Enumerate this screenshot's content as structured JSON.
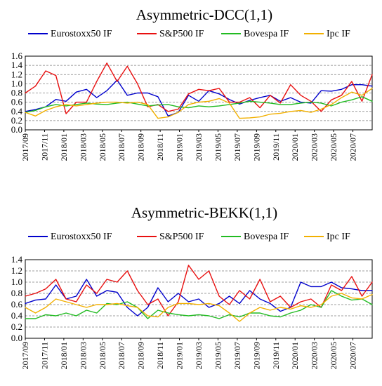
{
  "chart_data": [
    {
      "type": "line",
      "title": "Asymmetric-DCC(1,1)",
      "ylim": [
        0,
        1.6
      ],
      "yticks": [
        0,
        0.2,
        0.4,
        0.6,
        0.8,
        1.0,
        1.2,
        1.4,
        1.6
      ],
      "ytick_labels": [
        "0.0",
        "0.2",
        "0.4",
        "0.6",
        "0.8",
        "1.0",
        "1.2",
        "1.4",
        "1.6"
      ],
      "xtick_labels": [
        "2017/09",
        "2017/11",
        "2018/01",
        "2018/03",
        "2018/05",
        "2018/07",
        "2018/09",
        "2018/11",
        "2019/01",
        "2019/03",
        "2019/05",
        "2019/07",
        "2019/09",
        "2019/11",
        "2020/01",
        "2020/03",
        "2020/05",
        "2020/07"
      ],
      "grid": "horizontal-dashed",
      "legend": "top",
      "series": [
        {
          "name": "Eurostoxx50 IF",
          "color": "#0000CC",
          "values": [
            0.4,
            0.44,
            0.5,
            0.66,
            0.62,
            0.82,
            0.88,
            0.7,
            0.85,
            1.08,
            0.75,
            0.8,
            0.8,
            0.72,
            0.3,
            0.38,
            0.75,
            0.62,
            0.85,
            0.78,
            0.66,
            0.56,
            0.64,
            0.7,
            0.75,
            0.62,
            0.7,
            0.6,
            0.58,
            0.85,
            0.84,
            0.88,
            0.98,
            0.98,
            0.95
          ]
        },
        {
          "name": "S&P500 IF",
          "color": "#E81010",
          "values": [
            0.8,
            0.95,
            1.28,
            1.18,
            0.35,
            0.6,
            0.6,
            1.05,
            1.45,
            1.05,
            1.38,
            1.0,
            0.5,
            0.55,
            0.4,
            0.45,
            0.78,
            0.88,
            0.85,
            0.9,
            0.6,
            0.6,
            0.7,
            0.48,
            0.75,
            0.58,
            0.98,
            0.75,
            0.62,
            0.4,
            0.65,
            0.75,
            1.05,
            0.62,
            1.2
          ]
        },
        {
          "name": "Bovespa IF",
          "color": "#22BB22",
          "values": [
            0.38,
            0.42,
            0.5,
            0.55,
            0.52,
            0.55,
            0.58,
            0.56,
            0.55,
            0.58,
            0.6,
            0.56,
            0.52,
            0.54,
            0.55,
            0.5,
            0.48,
            0.52,
            0.5,
            0.52,
            0.55,
            0.58,
            0.62,
            0.6,
            0.58,
            0.55,
            0.55,
            0.58,
            0.6,
            0.58,
            0.52,
            0.6,
            0.65,
            0.72,
            0.62
          ]
        },
        {
          "name": "Ipc IF",
          "color": "#F2B000",
          "values": [
            0.38,
            0.3,
            0.42,
            0.5,
            0.55,
            0.52,
            0.55,
            0.58,
            0.6,
            0.6,
            0.58,
            0.6,
            0.55,
            0.25,
            0.28,
            0.38,
            0.55,
            0.6,
            0.62,
            0.68,
            0.58,
            0.25,
            0.26,
            0.28,
            0.34,
            0.36,
            0.4,
            0.42,
            0.38,
            0.45,
            0.55,
            0.7,
            0.82,
            0.75,
            0.9
          ]
        }
      ]
    },
    {
      "type": "line",
      "title": "Asymmetric-BEKK(1,1)",
      "ylim": [
        0,
        1.4
      ],
      "yticks": [
        0,
        0.2,
        0.4,
        0.6,
        0.8,
        1.0,
        1.2,
        1.4
      ],
      "ytick_labels": [
        "0.0",
        "0.2",
        "0.4",
        "0.6",
        "0.8",
        "1.0",
        "1.2",
        "1.4"
      ],
      "xtick_labels": [
        "2017/09",
        "2017/11",
        "2018/01",
        "2018/03",
        "2018/05",
        "2018/07",
        "2018/09",
        "2018/11",
        "2019/01",
        "2019/03",
        "2019/05",
        "2019/07",
        "2019/09",
        "2019/11",
        "2020/01",
        "2020/03",
        "2020/05",
        "2020/07"
      ],
      "grid": "horizontal-dashed",
      "legend": "top",
      "series": [
        {
          "name": "Eurostoxx50 IF",
          "color": "#0000CC",
          "values": [
            0.62,
            0.68,
            0.7,
            0.95,
            0.7,
            0.75,
            1.05,
            0.75,
            0.85,
            0.82,
            0.55,
            0.4,
            0.55,
            0.9,
            0.65,
            0.8,
            0.65,
            0.7,
            0.55,
            0.62,
            0.75,
            0.62,
            0.85,
            0.7,
            0.62,
            0.48,
            0.55,
            1.0,
            0.92,
            0.92,
            1.0,
            0.9,
            0.88,
            0.85,
            0.85
          ]
        },
        {
          "name": "S&P500 IF",
          "color": "#E81010",
          "values": [
            0.75,
            0.8,
            0.88,
            1.05,
            0.7,
            0.65,
            0.95,
            0.8,
            1.05,
            1.0,
            1.2,
            0.85,
            0.6,
            0.7,
            0.4,
            0.65,
            1.3,
            1.05,
            1.2,
            0.75,
            0.6,
            0.85,
            0.7,
            1.05,
            0.65,
            0.75,
            0.55,
            0.65,
            0.7,
            0.55,
            0.95,
            0.85,
            1.1,
            0.75,
            1.0
          ]
        },
        {
          "name": "Bovespa IF",
          "color": "#22BB22",
          "values": [
            0.35,
            0.35,
            0.42,
            0.4,
            0.45,
            0.4,
            0.5,
            0.45,
            0.62,
            0.6,
            0.65,
            0.55,
            0.35,
            0.5,
            0.45,
            0.42,
            0.4,
            0.42,
            0.4,
            0.35,
            0.42,
            0.38,
            0.45,
            0.45,
            0.4,
            0.38,
            0.45,
            0.5,
            0.6,
            0.55,
            0.85,
            0.75,
            0.68,
            0.7,
            0.6
          ]
        },
        {
          "name": "Ipc IF",
          "color": "#F2B000",
          "values": [
            0.55,
            0.45,
            0.55,
            0.7,
            0.65,
            0.6,
            0.55,
            0.6,
            0.6,
            0.62,
            0.58,
            0.55,
            0.4,
            0.38,
            0.55,
            0.62,
            0.62,
            0.6,
            0.62,
            0.58,
            0.45,
            0.3,
            0.45,
            0.55,
            0.5,
            0.55,
            0.52,
            0.58,
            0.55,
            0.6,
            0.75,
            0.8,
            0.72,
            0.7,
            0.78
          ]
        }
      ]
    }
  ]
}
